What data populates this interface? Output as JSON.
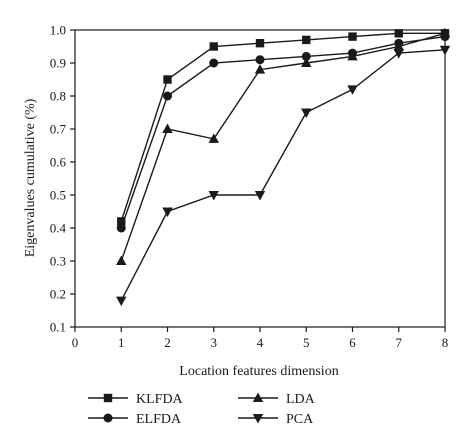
{
  "chart_data": {
    "type": "line",
    "xlabel": "Location features dimension",
    "ylabel": "Eigenvalues cumulative (%)",
    "xlim": [
      0,
      8
    ],
    "ylim": [
      0.1,
      1.0
    ],
    "x_ticks": [
      0,
      1,
      2,
      3,
      4,
      5,
      6,
      7,
      8
    ],
    "y_ticks": [
      0.1,
      0.2,
      0.3,
      0.4,
      0.5,
      0.6,
      0.7,
      0.8,
      0.9,
      1.0
    ],
    "x_tick_labels": [
      "0",
      "1",
      "2",
      "3",
      "4",
      "5",
      "6",
      "7",
      "8"
    ],
    "y_tick_labels": [
      "0.1",
      "0.2",
      "0.3",
      "0.4",
      "0.5",
      "0.6",
      "0.7",
      "0.8",
      "0.9",
      "1.0"
    ],
    "x": [
      1,
      2,
      3,
      4,
      5,
      6,
      7,
      8
    ],
    "grid": false,
    "legend_position": "bottom",
    "line_color": "#1a1a1a",
    "series": [
      {
        "name": "KLFDA",
        "marker": "square",
        "values": [
          0.42,
          0.85,
          0.95,
          0.96,
          0.97,
          0.98,
          0.99,
          0.99
        ]
      },
      {
        "name": "ELFDA",
        "marker": "circle",
        "values": [
          0.4,
          0.8,
          0.9,
          0.91,
          0.92,
          0.93,
          0.96,
          0.98
        ]
      },
      {
        "name": "LDA",
        "marker": "triangle-up",
        "values": [
          0.3,
          0.7,
          0.67,
          0.88,
          0.9,
          0.92,
          0.95,
          0.99
        ]
      },
      {
        "name": "PCA",
        "marker": "triangle-down",
        "values": [
          0.18,
          0.45,
          0.5,
          0.5,
          0.75,
          0.82,
          0.93,
          0.94
        ]
      }
    ]
  }
}
